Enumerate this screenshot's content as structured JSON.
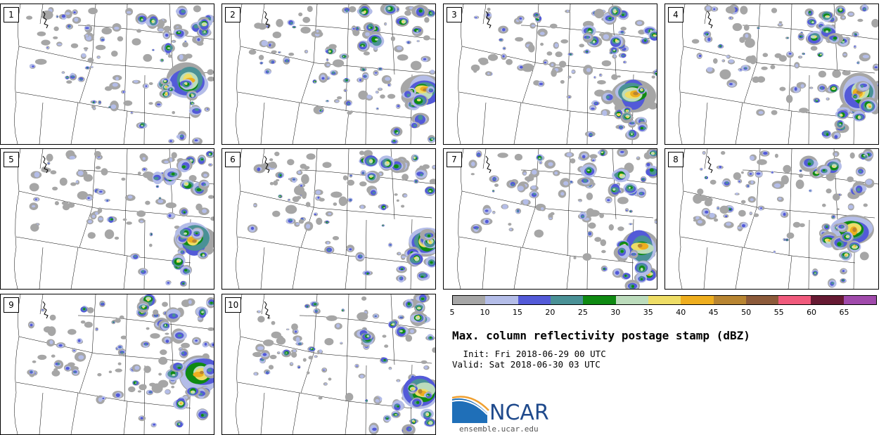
{
  "figure": {
    "title": "Max. column reflectivity postage stamp (dBZ)",
    "init": " Init: Fri 2018-06-29 00 UTC",
    "valid": "Valid: Sat 2018-06-30 03 UTC",
    "organization": "NCAR",
    "website": "ensemble.ucar.edu"
  },
  "panels": [
    {
      "label": "1"
    },
    {
      "label": "2"
    },
    {
      "label": "3"
    },
    {
      "label": "4"
    },
    {
      "label": "5"
    },
    {
      "label": "6"
    },
    {
      "label": "7"
    },
    {
      "label": "8"
    },
    {
      "label": "9"
    },
    {
      "label": "10"
    }
  ],
  "colorbar": {
    "units": "dBZ",
    "ticks": [
      "5",
      "10",
      "15",
      "20",
      "25",
      "30",
      "35",
      "40",
      "45",
      "50",
      "55",
      "60",
      "65"
    ],
    "colors": [
      "#a6a6a6",
      "#b4bde8",
      "#535ad8",
      "#4a9196",
      "#0f8a12",
      "#bcdcbc",
      "#eedd66",
      "#eeae1f",
      "#b88532",
      "#8c5a3a",
      "#f05a7c",
      "#661a33",
      "#a04aab"
    ]
  },
  "chart_data": {
    "type": "heatmap",
    "title": "Max. column reflectivity postage stamp (dBZ)",
    "units": "dBZ",
    "value_range": [
      5,
      70
    ],
    "color_levels": [
      5,
      10,
      15,
      20,
      25,
      30,
      35,
      40,
      45,
      50,
      55,
      60,
      65,
      70
    ],
    "ensemble_members": 10,
    "init_time": "Fri 2018-06-29 00 UTC",
    "valid_time": "Sat 2018-06-30 03 UTC"
  },
  "colors": {
    "state_lines": "#000000",
    "logo_blue": "#1f4a8c",
    "logo_swoosh": "#f0a030"
  }
}
